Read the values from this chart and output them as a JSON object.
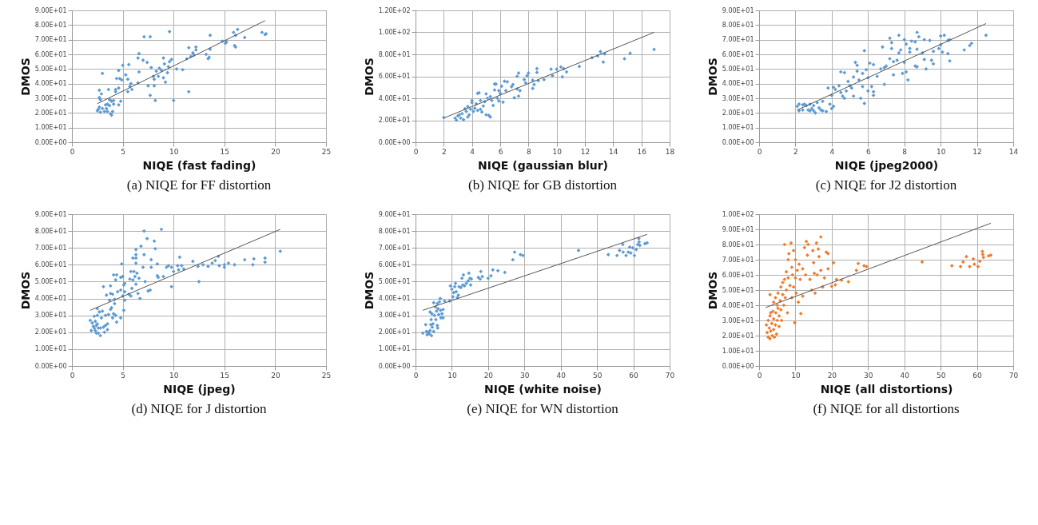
{
  "chart_data": [
    {
      "type": "scatter",
      "title": "(a) NIQE for FF distortion",
      "xlabel": "NIQE (fast fading)",
      "ylabel": "DMOS",
      "xlim": [
        0,
        25
      ],
      "xticks": [
        0,
        5,
        10,
        15,
        20,
        25
      ],
      "ylim": [
        0,
        90
      ],
      "yticks": [
        {
          "value": 0,
          "label": "0.00E+00"
        },
        {
          "value": 10,
          "label": "1.00E+01"
        },
        {
          "value": 20,
          "label": "2.00E+01"
        },
        {
          "value": 30,
          "label": "3.00E+01"
        },
        {
          "value": 40,
          "label": "4.00E+01"
        },
        {
          "value": 50,
          "label": "5.00E+01"
        },
        {
          "value": 60,
          "label": "6.00E+01"
        },
        {
          "value": 70,
          "label": "7.00E+01"
        },
        {
          "value": 80,
          "label": "8.00E+01"
        },
        {
          "value": 90,
          "label": "9.00E+01"
        }
      ],
      "grid": true,
      "marker": "diamond",
      "series": [
        {
          "color": "#5b9bd5",
          "x": [
            2.5,
            2.6,
            2.7,
            2.7,
            2.8,
            2.7,
            3.0,
            2.9,
            2.8,
            3.0,
            3.2,
            3.3,
            3.4,
            3.5,
            3.5,
            3.6,
            3.7,
            3.7,
            3.8,
            3.9,
            3.9,
            4.0,
            4.1,
            4.1,
            4.3,
            4.3,
            4.4,
            4.6,
            4.6,
            4.6,
            4.7,
            4.8,
            4.9,
            5.0,
            5.3,
            5.5,
            5.5,
            5.6,
            5.7,
            5.8,
            5.9,
            6.5,
            6.5,
            6.6,
            6.6,
            7.0,
            7.1,
            7.4,
            7.5,
            7.7,
            7.7,
            7.8,
            8.0,
            8.1,
            8.1,
            8.2,
            8.3,
            8.5,
            8.6,
            8.8,
            9.0,
            9.0,
            9.1,
            9.2,
            9.4,
            9.5,
            9.6,
            9.6,
            9.8,
            10.0,
            10.3,
            10.9,
            11.3,
            11.5,
            11.5,
            11.7,
            11.9,
            12.0,
            12.2,
            12.2,
            13.2,
            13.4,
            13.5,
            13.6,
            13.6,
            14.8,
            15.1,
            15.2,
            15.9,
            16.0,
            16.1,
            16.1,
            16.3,
            17.0,
            18.7,
            19.0,
            19.1
          ],
          "values": [
            21.5,
            22.5,
            24,
            30.5,
            29,
            35.5,
            47,
            33,
            20.5,
            23,
            21,
            25.5,
            23,
            26,
            21,
            36,
            25,
            29,
            19.5,
            18.5,
            28,
            21,
            26,
            28.5,
            34.5,
            36,
            43.5,
            49,
            37,
            25.5,
            43.5,
            28,
            42.5,
            52.5,
            46,
            34.5,
            43,
            53,
            38,
            40,
            36,
            40.5,
            57.5,
            60.5,
            48,
            56,
            72,
            54.5,
            38.5,
            72,
            32,
            51,
            45,
            43,
            38.5,
            28.5,
            48.5,
            45,
            50.5,
            49,
            57.5,
            44,
            53.5,
            41,
            47.5,
            51.5,
            75.5,
            55,
            56.5,
            28.5,
            50,
            49.5,
            57,
            64.5,
            34.5,
            58.5,
            61,
            59.5,
            65,
            63,
            60,
            57,
            58,
            73,
            63.5,
            69,
            67.5,
            68.5,
            75,
            66,
            73,
            65,
            77,
            71.5,
            75,
            73.5,
            74
          ]
        },
        {
          "type": "line",
          "marker": "none",
          "color": "#555555",
          "x": [
            2.5,
            19
          ],
          "values": [
            26.3,
            83
          ]
        }
      ]
    },
    {
      "type": "scatter",
      "title": "(b) NIQE for GB distortion",
      "xlabel": "NIQE (gaussian  blur)",
      "ylabel": "DMOS",
      "xlim": [
        0,
        18
      ],
      "xticks": [
        0,
        2,
        4,
        6,
        8,
        10,
        12,
        14,
        16,
        18
      ],
      "ylim": [
        0,
        120
      ],
      "yticks": [
        {
          "value": 0,
          "label": "0.00E+00"
        },
        {
          "value": 20,
          "label": "2.00E+01"
        },
        {
          "value": 40,
          "label": "4.00E+01"
        },
        {
          "value": 60,
          "label": "6.00E+01"
        },
        {
          "value": 80,
          "label": "8.00E+01"
        },
        {
          "value": 100,
          "label": "1.00E+02"
        },
        {
          "value": 120,
          "label": "1.20E+02"
        }
      ],
      "grid": true,
      "marker": "diamond",
      "series": [
        {
          "color": "#5b9bd5",
          "x": [
            2.0,
            2.8,
            2.9,
            3.0,
            3.1,
            3.2,
            3.3,
            3.4,
            3.5,
            3.6,
            3.7,
            3.7,
            3.8,
            3.9,
            4.0,
            4.0,
            4.1,
            4.2,
            4.3,
            4.4,
            4.4,
            4.5,
            4.6,
            4.6,
            4.7,
            4.8,
            4.9,
            5.0,
            5.0,
            5.1,
            5.2,
            5.3,
            5.3,
            5.4,
            5.5,
            5.6,
            5.6,
            5.7,
            5.8,
            5.9,
            5.9,
            6.0,
            6.1,
            6.2,
            6.3,
            6.4,
            6.5,
            6.8,
            6.9,
            7.0,
            7.2,
            7.2,
            7.3,
            7.3,
            7.4,
            7.7,
            7.8,
            7.9,
            8.0,
            8.3,
            8.3,
            8.4,
            8.6,
            8.6,
            8.7,
            9.1,
            9.6,
            9.7,
            10.0,
            10.3,
            10.4,
            10.5,
            10.7,
            11.6,
            12.5,
            12.9,
            13.1,
            13.3,
            13.4,
            14.8,
            15.2,
            16.9
          ],
          "values": [
            22.5,
            22,
            20,
            24,
            25,
            22,
            26,
            20.5,
            30.5,
            28,
            23,
            32.5,
            25,
            30,
            36,
            38,
            28,
            31,
            35,
            44.5,
            29,
            45,
            38,
            30,
            27.5,
            33,
            37,
            44,
            25,
            40,
            24.5,
            23,
            41.5,
            38,
            33.5,
            53,
            47.5,
            53,
            40,
            47,
            37.5,
            44.5,
            51,
            36.5,
            55.5,
            47,
            55,
            50.5,
            52.5,
            40.5,
            60,
            48.5,
            42,
            63,
            47,
            57,
            54,
            60.5,
            63,
            49,
            56.5,
            52.5,
            67,
            63.5,
            56,
            57,
            66.5,
            60.5,
            66.5,
            68.5,
            59.5,
            67,
            64,
            69,
            77,
            78.5,
            82.5,
            73,
            80.5,
            76,
            81,
            84.5
          ]
        },
        {
          "type": "line",
          "marker": "none",
          "color": "#555555",
          "x": [
            2,
            16.9
          ],
          "values": [
            22,
            100
          ]
        }
      ]
    },
    {
      "type": "scatter",
      "title": "(c) NIQE for J2 distortion",
      "xlabel": "NIQE (jpeg2000)",
      "ylabel": "DMOS",
      "xlim": [
        0,
        14
      ],
      "xticks": [
        0,
        2,
        4,
        6,
        8,
        10,
        12,
        14
      ],
      "ylim": [
        0,
        90
      ],
      "yticks": [
        {
          "value": 0,
          "label": "0.00E+00"
        },
        {
          "value": 10,
          "label": "1.00E+01"
        },
        {
          "value": 20,
          "label": "2.00E+01"
        },
        {
          "value": 30,
          "label": "3.00E+01"
        },
        {
          "value": 40,
          "label": "4.00E+01"
        },
        {
          "value": 50,
          "label": "5.00E+01"
        },
        {
          "value": 60,
          "label": "6.00E+01"
        },
        {
          "value": 70,
          "label": "7.00E+01"
        },
        {
          "value": 80,
          "label": "8.00E+01"
        },
        {
          "value": 90,
          "label": "9.00E+01"
        }
      ],
      "grid": true,
      "marker": "diamond",
      "series": [
        {
          "color": "#5b9bd5",
          "x": [
            2.1,
            2.2,
            2.2,
            2.4,
            2.4,
            2.5,
            2.6,
            2.7,
            2.8,
            2.8,
            2.9,
            3.0,
            3.0,
            3.1,
            3.2,
            3.3,
            3.4,
            3.5,
            3.5,
            3.7,
            3.8,
            3.9,
            4.0,
            4.0,
            4.1,
            4.1,
            4.2,
            4.4,
            4.5,
            4.5,
            4.6,
            4.7,
            4.7,
            4.8,
            4.9,
            5.0,
            5.1,
            5.2,
            5.2,
            5.3,
            5.4,
            5.4,
            5.5,
            5.6,
            5.7,
            5.7,
            5.8,
            5.8,
            5.9,
            6.0,
            6.0,
            6.1,
            6.2,
            6.3,
            6.3,
            6.3,
            6.5,
            6.7,
            6.8,
            6.9,
            6.9,
            7.0,
            7.2,
            7.2,
            7.3,
            7.3,
            7.4,
            7.4,
            7.6,
            7.7,
            7.7,
            7.8,
            7.9,
            8.0,
            8.0,
            8.1,
            8.1,
            8.2,
            8.3,
            8.3,
            8.4,
            8.6,
            8.6,
            8.7,
            8.7,
            8.7,
            8.8,
            9.0,
            9.1,
            9.1,
            9.2,
            9.4,
            9.5,
            9.6,
            9.6,
            9.9,
            10.0,
            10.0,
            10.1,
            10.2,
            10.4,
            10.4,
            10.5,
            10.5,
            11.3,
            11.6,
            11.7,
            12.5
          ],
          "values": [
            24.5,
            21.5,
            26,
            22,
            25.5,
            26,
            25,
            22,
            21.5,
            26,
            23,
            25,
            21.5,
            20,
            27,
            23.5,
            22,
            21.5,
            28,
            21,
            37,
            26,
            23,
            32,
            37.5,
            24.5,
            36,
            38.5,
            48,
            34,
            31.5,
            47.5,
            30,
            35,
            41.5,
            38.5,
            37,
            44.5,
            31.5,
            54.5,
            48.5,
            52.5,
            42.5,
            30,
            38,
            47,
            26.5,
            62.5,
            49.5,
            35,
            44,
            54,
            38,
            53,
            34.5,
            32,
            45,
            50,
            65,
            39.5,
            51,
            52,
            71,
            57,
            68,
            64,
            55,
            46,
            56,
            73,
            61,
            63,
            47,
            70,
            54.5,
            67,
            48,
            42.5,
            64,
            61.5,
            69,
            52,
            68.5,
            75,
            63.5,
            51.5,
            72,
            61,
            56.5,
            70,
            50,
            69.5,
            56,
            62,
            53.5,
            64,
            72.5,
            66.5,
            61.5,
            73,
            69.5,
            60.5,
            70,
            55.5,
            63,
            66,
            67.5,
            73
          ]
        },
        {
          "type": "line",
          "marker": "none",
          "color": "#555555",
          "x": [
            2.1,
            12.5
          ],
          "values": [
            22,
            81
          ]
        }
      ]
    },
    {
      "type": "scatter",
      "title": "(d) NIQE for J distortion",
      "xlabel": "NIQE (jpeg)",
      "ylabel": "DMOS",
      "xlim": [
        0,
        25
      ],
      "xticks": [
        0,
        5,
        10,
        15,
        20,
        25
      ],
      "ylim": [
        0,
        90
      ],
      "yticks": [
        {
          "value": 0,
          "label": "0.00E+00"
        },
        {
          "value": 10,
          "label": "1.00E+01"
        },
        {
          "value": 20,
          "label": "2.00E+01"
        },
        {
          "value": 30,
          "label": "3.00E+01"
        },
        {
          "value": 40,
          "label": "4.00E+01"
        },
        {
          "value": 50,
          "label": "5.00E+01"
        },
        {
          "value": 60,
          "label": "6.00E+01"
        },
        {
          "value": 70,
          "label": "7.00E+01"
        },
        {
          "value": 80,
          "label": "8.00E+01"
        },
        {
          "value": 90,
          "label": "9.00E+01"
        }
      ],
      "grid": true,
      "marker": "diamond",
      "series": [
        {
          "color": "#5b9bd5",
          "x": [
            1.8,
            1.9,
            2.0,
            2.1,
            2.2,
            2.2,
            2.3,
            2.3,
            2.4,
            2.4,
            2.5,
            2.5,
            2.5,
            2.6,
            2.6,
            2.7,
            2.8,
            2.8,
            2.9,
            3.0,
            3.1,
            3.1,
            3.2,
            3.3,
            3.3,
            3.4,
            3.5,
            3.5,
            3.6,
            3.7,
            3.8,
            3.8,
            3.8,
            3.9,
            4.0,
            4.0,
            4.1,
            4.1,
            4.2,
            4.2,
            4.3,
            4.3,
            4.4,
            4.4,
            4.5,
            4.8,
            4.8,
            4.8,
            4.9,
            5.0,
            5.0,
            5.1,
            5.1,
            5.2,
            5.2,
            5.2,
            5.6,
            5.7,
            5.8,
            5.8,
            5.9,
            6.0,
            6.0,
            6.1,
            6.2,
            6.3,
            6.3,
            6.3,
            6.3,
            6.3,
            6.4,
            6.5,
            6.6,
            6.7,
            6.8,
            7.0,
            7.1,
            7.1,
            7.2,
            7.4,
            7.5,
            7.7,
            7.8,
            7.8,
            8.1,
            8.2,
            8.4,
            8.4,
            8.5,
            8.8,
            9.0,
            9.3,
            9.5,
            9.8,
            9.8,
            10.0,
            10.4,
            10.5,
            10.6,
            10.8,
            11.0,
            11.9,
            12.4,
            12.5,
            12.9,
            13.4,
            13.8,
            14.1,
            14.4,
            14.5,
            15.0,
            15.0,
            15.4,
            16.0,
            17.0,
            17.8,
            17.9,
            19.0,
            19.0,
            20.5
          ],
          "values": [
            27,
            21,
            25.5,
            23.5,
            29.5,
            22.5,
            26.5,
            21,
            19.5,
            24,
            34,
            30,
            25,
            22.5,
            19.5,
            32,
            18,
            22.5,
            28.5,
            32.5,
            47,
            23,
            20,
            24,
            30,
            42,
            21.5,
            25,
            30.5,
            39,
            33.5,
            47.5,
            43,
            34.5,
            42.5,
            28.5,
            54,
            31,
            37,
            39.5,
            51,
            30,
            54,
            26,
            44,
            52.5,
            45,
            28.5,
            60.5,
            41.5,
            53,
            48,
            33,
            49,
            44,
            39,
            42.5,
            51.5,
            41.5,
            56,
            46,
            51,
            64,
            56,
            53,
            48.5,
            69,
            66,
            64,
            61,
            55,
            43,
            52,
            40,
            71,
            58.5,
            80,
            66,
            50,
            75.5,
            44.5,
            45,
            58.5,
            63,
            74,
            69.5,
            53.5,
            60.5,
            52.5,
            81,
            53,
            58.5,
            59.5,
            47,
            58.5,
            56,
            59.5,
            57,
            64.5,
            59.5,
            57.5,
            62,
            59,
            50,
            60,
            59,
            61,
            62.5,
            65,
            59.5,
            58.5,
            60,
            61,
            60,
            63,
            60,
            63.5,
            61.5,
            64,
            68
          ]
        },
        {
          "type": "line",
          "marker": "none",
          "color": "#555555",
          "x": [
            1.8,
            20.5
          ],
          "values": [
            33,
            81
          ]
        }
      ]
    },
    {
      "type": "scatter",
      "title": "(e) NIQE for WN distortion",
      "xlabel": "NIQE (white noise)",
      "ylabel": "DMOS",
      "xlim": [
        0,
        70
      ],
      "xticks": [
        0,
        10,
        20,
        30,
        40,
        50,
        60,
        70
      ],
      "ylim": [
        0,
        90
      ],
      "yticks": [
        {
          "value": 0,
          "label": "0.00E+00"
        },
        {
          "value": 10,
          "label": "1.00E+01"
        },
        {
          "value": 20,
          "label": "2.00E+01"
        },
        {
          "value": 30,
          "label": "3.00E+01"
        },
        {
          "value": 40,
          "label": "4.00E+01"
        },
        {
          "value": 50,
          "label": "5.00E+01"
        },
        {
          "value": 60,
          "label": "6.00E+01"
        },
        {
          "value": 70,
          "label": "7.00E+01"
        },
        {
          "value": 80,
          "label": "8.00E+01"
        },
        {
          "value": 90,
          "label": "9.00E+01"
        }
      ],
      "grid": true,
      "marker": "diamond",
      "series": [
        {
          "color": "#5b9bd5",
          "x": [
            2,
            2.8,
            3,
            3.2,
            3.5,
            3.8,
            4,
            4,
            4.2,
            4.3,
            4.4,
            4.5,
            4.6,
            4.8,
            5,
            5,
            5.2,
            5.5,
            5.6,
            5.8,
            6,
            6,
            6.1,
            6.2,
            6.4,
            6.6,
            6.8,
            6.9,
            7,
            7.3,
            7.6,
            7.6,
            8,
            9.4,
            9.6,
            10,
            10.3,
            10.5,
            10.8,
            11,
            11.2,
            11.5,
            11.8,
            12,
            12.5,
            12.8,
            13,
            13.2,
            13.5,
            14,
            14.5,
            14.7,
            15,
            15.2,
            15.4,
            17.3,
            17.8,
            18,
            18.4,
            20,
            20.8,
            21.3,
            22.7,
            24.6,
            26.8,
            27.3,
            28.9,
            29.6,
            44.9,
            53.1,
            55.5,
            56.2,
            57.1,
            57.2,
            58,
            58.6,
            59,
            59.3,
            59.8,
            60.3,
            60.8,
            61.2,
            61.5,
            61.6,
            61.8,
            63.2,
            63.8
          ],
          "values": [
            19.5,
            24.5,
            20.5,
            18.5,
            20,
            19,
            32,
            21,
            24.5,
            27.5,
            18,
            31,
            23,
            25,
            20.5,
            37.5,
            30,
            35,
            27.5,
            32.5,
            37,
            24,
            22.5,
            34,
            30.5,
            38,
            40,
            33,
            28.5,
            31,
            33.5,
            28.5,
            38.5,
            38.5,
            47.5,
            45.5,
            41,
            43.5,
            47,
            49,
            44,
            40.5,
            42,
            47,
            46.5,
            52,
            48,
            54,
            47.5,
            49,
            50.5,
            55,
            52,
            48,
            51.5,
            52.5,
            51.5,
            56,
            53,
            52,
            53.5,
            57,
            56.5,
            55.5,
            63,
            67.5,
            66,
            65.5,
            68.5,
            66,
            65.5,
            68.5,
            72,
            67.5,
            65.5,
            67.5,
            70.5,
            67,
            70,
            65.5,
            69,
            72,
            75.5,
            73.5,
            71.5,
            72.5,
            73
          ]
        },
        {
          "type": "line",
          "marker": "none",
          "color": "#555555",
          "x": [
            2,
            63.8
          ],
          "values": [
            33,
            78
          ]
        }
      ]
    },
    {
      "type": "scatter",
      "title": "(f) NIQE for all distortions",
      "xlabel": "NIQE (all distortions)",
      "ylabel": "DMOS",
      "xlim": [
        0,
        70
      ],
      "xticks": [
        0,
        10,
        20,
        30,
        40,
        50,
        60,
        70
      ],
      "ylim": [
        0,
        100
      ],
      "yticks": [
        {
          "value": 0,
          "label": "0.00E+00"
        },
        {
          "value": 10,
          "label": "1.00E+01"
        },
        {
          "value": 20,
          "label": "2.00E+01"
        },
        {
          "value": 30,
          "label": "3.00E+01"
        },
        {
          "value": 40,
          "label": "4.00E+01"
        },
        {
          "value": 50,
          "label": "5.00E+01"
        },
        {
          "value": 60,
          "label": "6.00E+01"
        },
        {
          "value": 70,
          "label": "7.00E+01"
        },
        {
          "value": 80,
          "label": "8.00E+01"
        },
        {
          "value": 90,
          "label": "9.00E+01"
        },
        {
          "value": 100,
          "label": "1.00E+02"
        }
      ],
      "grid": true,
      "marker": "diamond",
      "series": [
        {
          "color": "#ed7d31",
          "x": [
            2,
            2.2,
            2.5,
            2.5,
            2.8,
            3,
            3,
            3.2,
            3.5,
            3.6,
            3.8,
            4,
            4,
            4.2,
            4.5,
            4.6,
            4.8,
            5,
            5.2,
            5.5,
            3,
            3.2,
            4,
            4.5,
            5,
            5.2,
            5.5,
            5.8,
            6,
            6,
            6.2,
            6.5,
            6.5,
            6.8,
            7,
            7,
            7.2,
            7.5,
            7.5,
            7.8,
            8,
            8,
            8.2,
            8.5,
            8.8,
            9,
            9,
            9.2,
            9.5,
            9.5,
            9.8,
            10,
            10,
            10.2,
            10.5,
            10.8,
            11,
            11.3,
            11.5,
            12,
            12,
            12.5,
            12.8,
            13,
            13.3,
            13.5,
            14,
            14.5,
            14.8,
            15,
            15.2,
            15.4,
            15.8,
            16,
            16.3,
            16.5,
            17,
            17,
            17.5,
            18,
            18.5,
            19,
            19,
            20,
            20.5,
            21,
            21.3,
            22.7,
            24.6,
            26.8,
            27.3,
            28.9,
            29.6,
            44.9,
            53.1,
            55.5,
            56.2,
            57.1,
            58,
            59,
            59.3,
            60.3,
            60.8,
            61.5,
            61.6,
            61.8,
            63.2,
            63.8
          ],
          "values": [
            27,
            22,
            19,
            30,
            25,
            18,
            33,
            23,
            28,
            20,
            36,
            24,
            31,
            19,
            27,
            35,
            21,
            30,
            38,
            26,
            47,
            35,
            42,
            45,
            40,
            48,
            33,
            43,
            52,
            37,
            30,
            47,
            55,
            40,
            57,
            80,
            45,
            62,
            50,
            35,
            70,
            58,
            74,
            53,
            81,
            65,
            45,
            60,
            76,
            52,
            28.5,
            70,
            58,
            48,
            63,
            42,
            67,
            57,
            34.5,
            64,
            46,
            78,
            60,
            82,
            73,
            80,
            57,
            50,
            76,
            68,
            61,
            48,
            81,
            60,
            77,
            72,
            85,
            63,
            52,
            58,
            75,
            64,
            74,
            52.5,
            68,
            53.5,
            57,
            56.5,
            55.5,
            63,
            67.5,
            66,
            65.5,
            68.5,
            66,
            65.5,
            68.5,
            72,
            65.5,
            70.5,
            67,
            65.5,
            69,
            75.5,
            73.5,
            71.5,
            72.5,
            73
          ]
        },
        {
          "type": "line",
          "marker": "none",
          "color": "#555555",
          "x": [
            1.8,
            63.8
          ],
          "values": [
            38.5,
            94
          ]
        }
      ]
    }
  ]
}
